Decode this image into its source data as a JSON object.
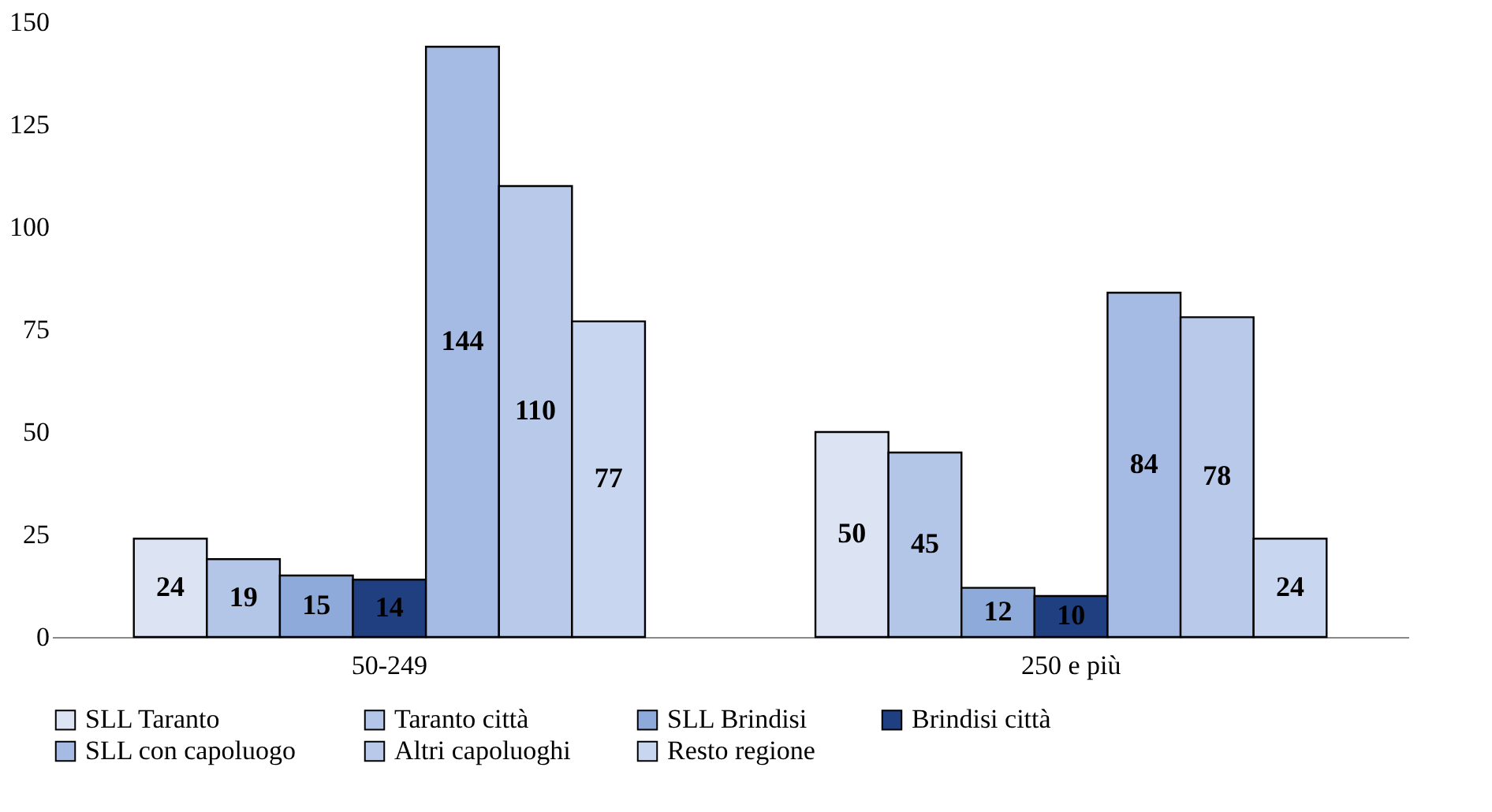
{
  "chart_data": {
    "type": "bar",
    "categories": [
      "50-249",
      "250 e più"
    ],
    "series": [
      {
        "name": "SLL Taranto",
        "color": "#dce3f3",
        "values": [
          24,
          50
        ]
      },
      {
        "name": "Taranto città",
        "color": "#b4c6e7",
        "values": [
          19,
          45
        ]
      },
      {
        "name": "SLL Brindisi",
        "color": "#8eaadb",
        "values": [
          15,
          12
        ]
      },
      {
        "name": "Brindisi città",
        "color": "#203f80",
        "values": [
          14,
          10
        ]
      },
      {
        "name": "SLL con capoluogo",
        "color": "#a6bbe4",
        "values": [
          144,
          84
        ]
      },
      {
        "name": "Altri capoluoghi",
        "color": "#b9c9ea",
        "values": [
          110,
          78
        ]
      },
      {
        "name": "Resto regione",
        "color": "#c9d6ef",
        "values": [
          77,
          24
        ]
      }
    ],
    "ylim": [
      0,
      150
    ],
    "yticks": [
      0,
      25,
      50,
      75,
      100,
      125,
      150
    ],
    "grid": false,
    "legend": "bottom",
    "data_labels": true
  }
}
